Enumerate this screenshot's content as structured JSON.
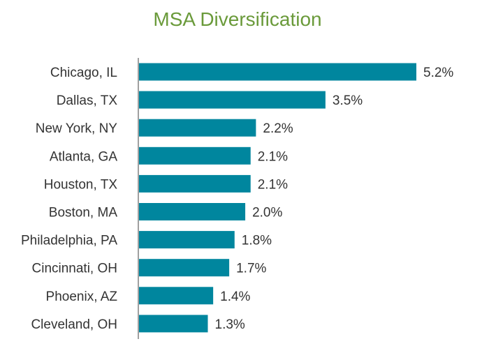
{
  "chart_data": {
    "type": "bar",
    "orientation": "horizontal",
    "title": "MSA Diversification",
    "categories": [
      "Chicago, IL",
      "Dallas, TX",
      "New York, NY",
      "Atlanta, GA",
      "Houston, TX",
      "Boston, MA",
      "Philadelphia, PA",
      "Cincinnati, OH",
      "Phoenix, AZ",
      "Cleveland, OH"
    ],
    "values": [
      5.2,
      3.5,
      2.2,
      2.1,
      2.1,
      2.0,
      1.8,
      1.7,
      1.4,
      1.3
    ],
    "value_labels": [
      "5.2%",
      "3.5%",
      "2.2%",
      "2.1%",
      "2.1%",
      "2.0%",
      "1.8%",
      "1.7%",
      "1.4%",
      "1.3%"
    ],
    "xlabel": "",
    "ylabel": "",
    "xlim": [
      0,
      5.2
    ],
    "grid": false,
    "colors": {
      "bar": "#00869e",
      "title": "#6a9a3a",
      "axis": "#a0a0a0",
      "text": "#333333"
    }
  }
}
